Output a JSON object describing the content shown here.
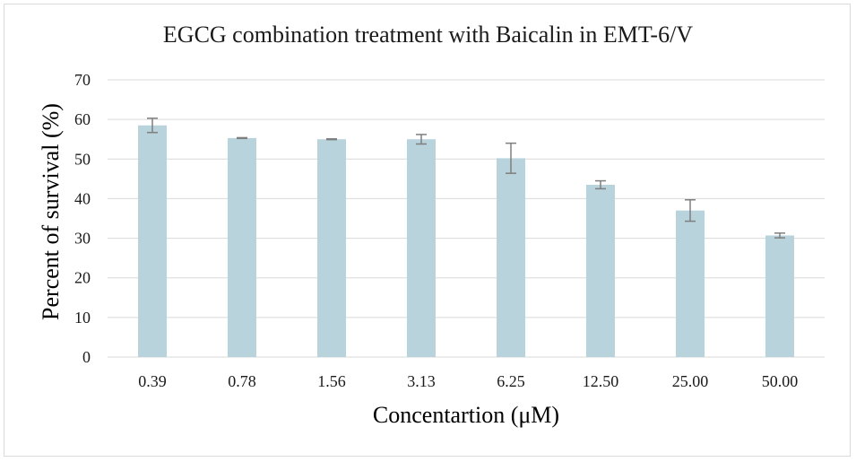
{
  "chart_data": {
    "type": "bar",
    "title": "EGCG combination treatment with Baicalin in EMT-6/V",
    "xlabel": "Concentartion (μM)",
    "ylabel": "Percent of survival (%)",
    "categories": [
      "0.39",
      "0.78",
      "1.56",
      "3.13",
      "6.25",
      "12.50",
      "25.00",
      "50.00"
    ],
    "values": [
      58.5,
      55.3,
      55.0,
      55.0,
      50.2,
      43.5,
      37.0,
      30.7
    ],
    "errors": [
      1.8,
      0.1,
      0.1,
      1.2,
      3.8,
      1.0,
      2.7,
      0.6
    ],
    "ylim": [
      0,
      70
    ],
    "yticks": [
      0,
      10,
      20,
      30,
      40,
      50,
      60,
      70
    ],
    "grid": true,
    "legend": "none",
    "bar_color": "#b8d3dc",
    "error_color": "#7f7f7f",
    "grid_color": "#d9d9d9"
  }
}
